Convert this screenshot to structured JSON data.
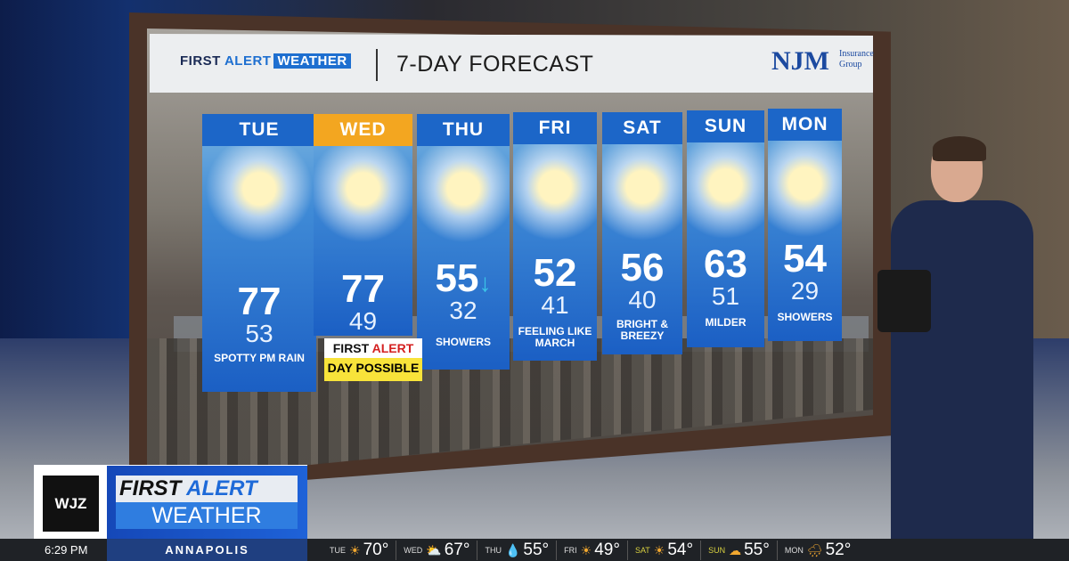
{
  "board": {
    "brand": {
      "first": "FIRST",
      "alert": "ALERT",
      "weather": "WEATHER"
    },
    "title": "7-DAY FORECAST",
    "sponsor": {
      "name": "NJM",
      "sub": "Insurance Group"
    },
    "days": [
      {
        "day": "TUE",
        "hi": "77",
        "lo": "53",
        "note": "SPOTTY PM RAIN",
        "icon": "sun-cloud-icon"
      },
      {
        "day": "WED",
        "hi": "77",
        "lo": "49",
        "note": "",
        "icon": "thunderstorm-icon"
      },
      {
        "day": "THU",
        "hi": "55",
        "lo": "32",
        "note": "SHOWERS",
        "icon": "rain-cloud-icon",
        "trend": "↓"
      },
      {
        "day": "FRI",
        "hi": "52",
        "lo": "41",
        "note": "FEELING LIKE MARCH",
        "icon": "sun-cloud-icon"
      },
      {
        "day": "SAT",
        "hi": "56",
        "lo": "40",
        "note": "BRIGHT & BREEZY",
        "icon": "sun-cloud-icon"
      },
      {
        "day": "SUN",
        "hi": "63",
        "lo": "51",
        "note": "MILDER",
        "icon": "sun-cloud-icon"
      },
      {
        "day": "MON",
        "hi": "54",
        "lo": "29",
        "note": "SHOWERS",
        "icon": "rain-cloud-icon"
      }
    ],
    "alert": {
      "first": "FIRST",
      "alert": "ALERT",
      "sub": "DAY POSSIBLE"
    }
  },
  "lower_third": {
    "station": "WJZ",
    "line1a": "FIRST",
    "line1b": "ALERT",
    "line2": "WEATHER"
  },
  "ticker": {
    "time": "6:29 PM",
    "location": "ANNAPOLIS",
    "days": [
      {
        "day": "TUE",
        "temp": "70°",
        "icon": "partly-sunny-icon",
        "glyph": "☀"
      },
      {
        "day": "WED",
        "temp": "67°",
        "icon": "partly-sunny-icon",
        "glyph": "⛅"
      },
      {
        "day": "THU",
        "temp": "55°",
        "icon": "rain-drops-icon",
        "glyph": "💧"
      },
      {
        "day": "FRI",
        "temp": "49°",
        "icon": "partly-sunny-icon",
        "glyph": "☀"
      },
      {
        "day": "SAT",
        "temp": "54°",
        "icon": "partly-sunny-icon",
        "glyph": "☀",
        "highlight": true
      },
      {
        "day": "SUN",
        "temp": "55°",
        "icon": "cloud-icon",
        "glyph": "☁",
        "highlight": true
      },
      {
        "day": "MON",
        "temp": "52°",
        "icon": "rain-cloud-icon",
        "glyph": "🌧"
      }
    ]
  },
  "colors": {
    "card_blue": "#1c66c8",
    "wed_header": "#f3a620",
    "alert_yellow": "#f8e33a",
    "ticker": "#1f2226"
  }
}
